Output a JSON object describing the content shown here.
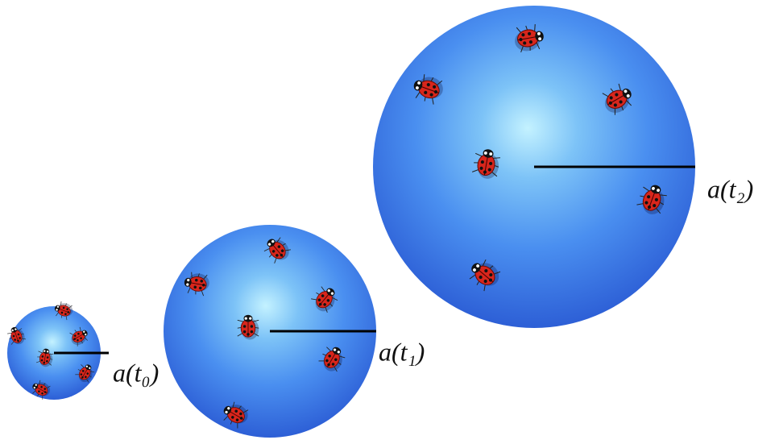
{
  "spheres": [
    {
      "label": "a(t₀)"
    },
    {
      "label": "a(t₁)"
    },
    {
      "label": "a(t₂)"
    }
  ]
}
